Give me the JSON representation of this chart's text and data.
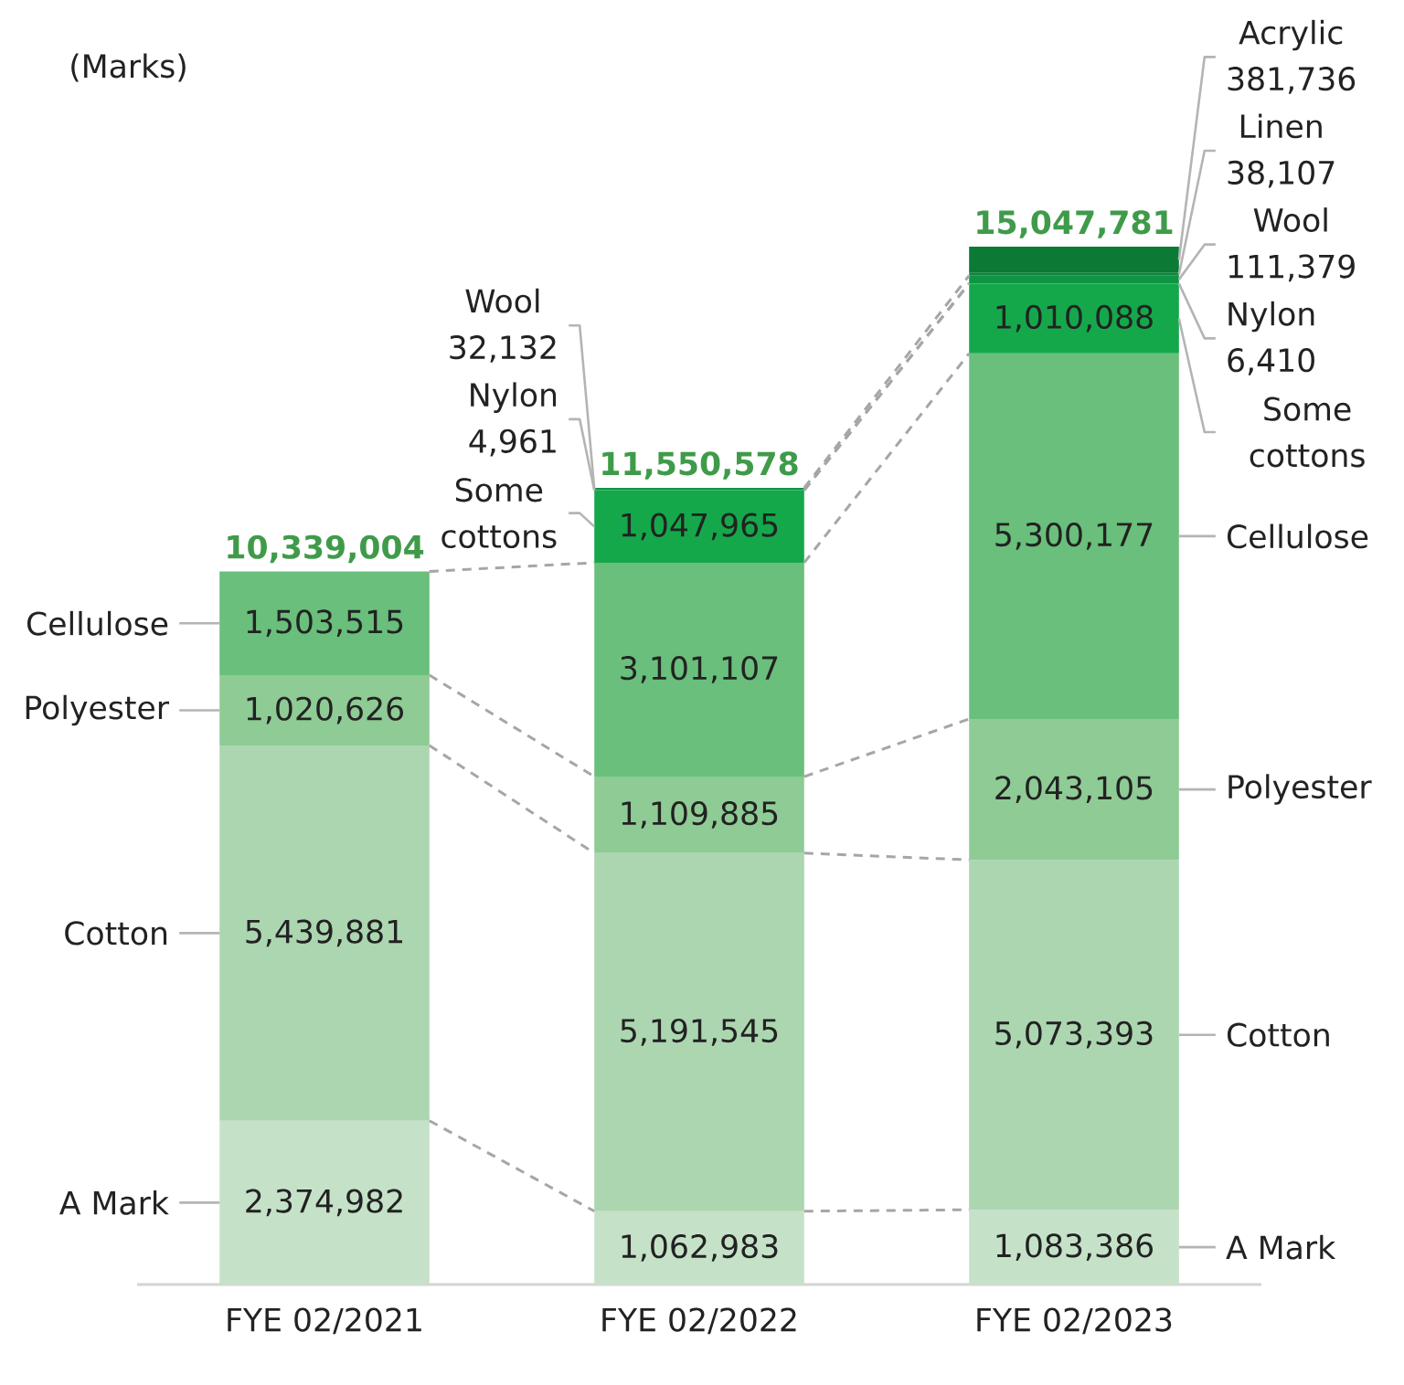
{
  "chart_data": {
    "type": "bar",
    "stacked": true,
    "annotations": [
      "(Marks)"
    ],
    "categories": [
      "FYE 02/2021",
      "FYE 02/2022",
      "FYE 02/2023"
    ],
    "series": [
      {
        "name": "A Mark",
        "color": "#c5e2c8",
        "values": [
          2374982,
          1062983,
          1083386
        ],
        "value_labels": [
          "2,374,982",
          "1,062,983",
          "1,083,386"
        ]
      },
      {
        "name": "Cotton",
        "color": "#acd6b0",
        "values": [
          5439881,
          5191545,
          5073393
        ],
        "value_labels": [
          "5,439,881",
          "5,191,545",
          "5,073,393"
        ]
      },
      {
        "name": "Polyester",
        "color": "#8fcb95",
        "values": [
          1020626,
          1109885,
          2043105
        ],
        "value_labels": [
          "1,020,626",
          "1,109,885",
          "2,043,105"
        ]
      },
      {
        "name": "Cellulose",
        "color": "#69bf7b",
        "values": [
          1503515,
          3101107,
          5300177
        ],
        "value_labels": [
          "1,503,515",
          "3,101,107",
          "5,300,177"
        ]
      },
      {
        "name": "Some cottons",
        "color": "#14a84b",
        "values": [
          null,
          1047965,
          1010088
        ],
        "value_labels": [
          null,
          "1,047,965",
          "1,010,088"
        ]
      },
      {
        "name": "Nylon",
        "color": "#109e46",
        "values": [
          null,
          4961,
          6410
        ],
        "value_labels": [
          null,
          "4,961",
          "6,410"
        ]
      },
      {
        "name": "Wool",
        "color": "#0e9442",
        "values": [
          null,
          32132,
          111379
        ],
        "value_labels": [
          null,
          "32,132",
          "111,379"
        ]
      },
      {
        "name": "Linen",
        "color": "#0c883c",
        "values": [
          null,
          null,
          38107
        ],
        "value_labels": [
          null,
          null,
          "38,107"
        ]
      },
      {
        "name": "Acrylic",
        "color": "#0a7a34",
        "values": [
          null,
          null,
          381736
        ],
        "value_labels": [
          null,
          null,
          "381,736"
        ]
      }
    ],
    "totals": [
      "10,339,004",
      "11,550,578",
      "15,047,781"
    ]
  }
}
